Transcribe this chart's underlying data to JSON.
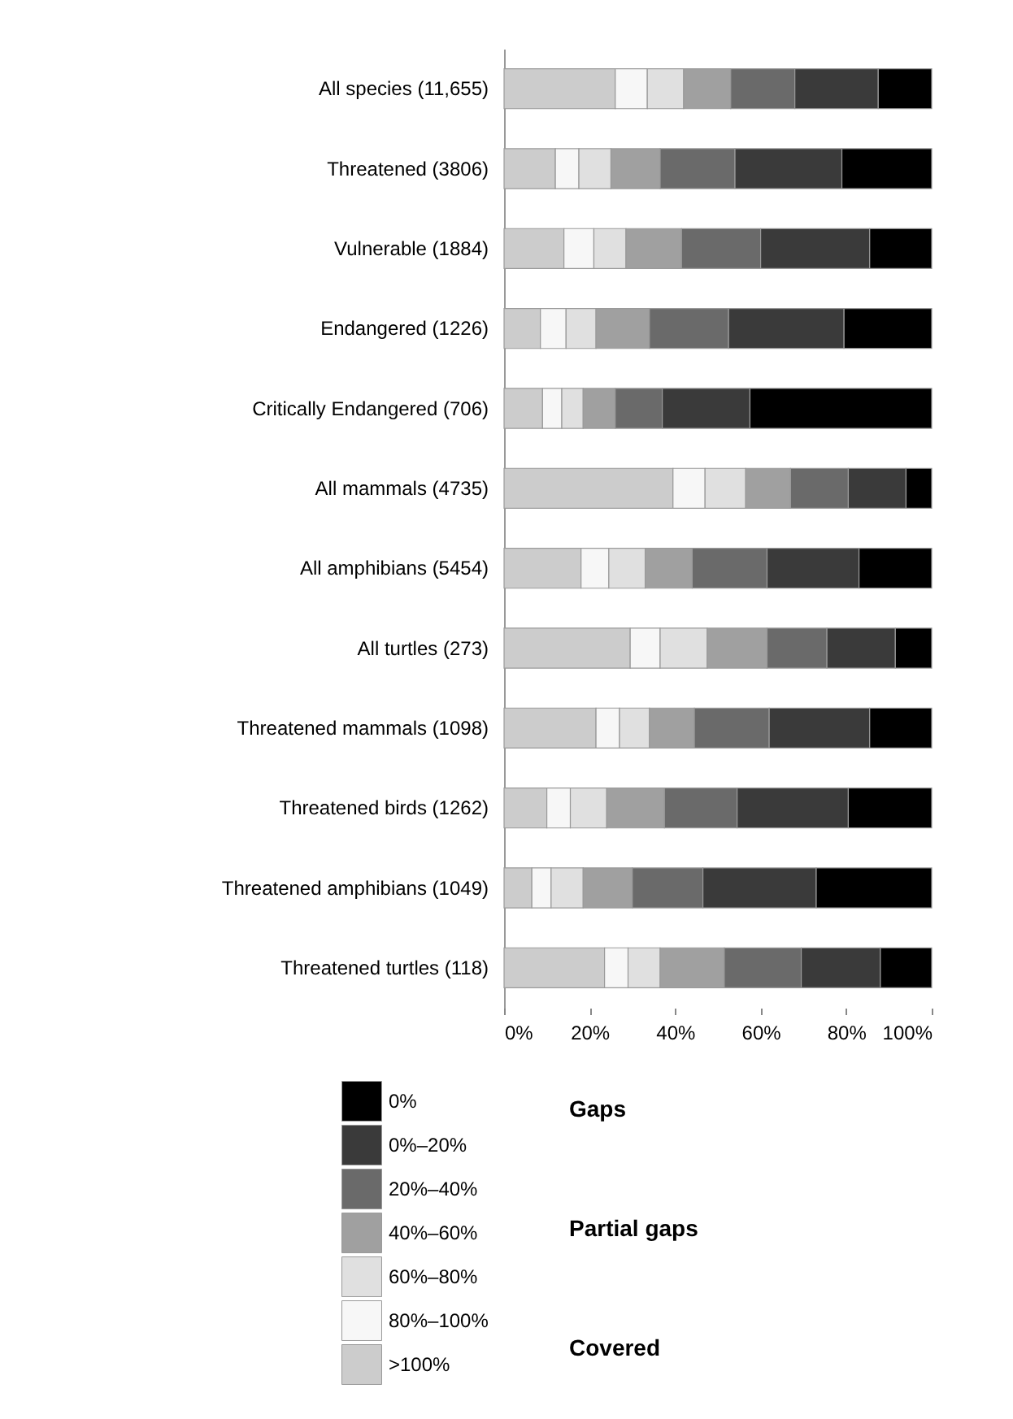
{
  "chart_data": {
    "type": "bar",
    "orientation": "horizontal",
    "stacked": true,
    "categories": [
      "All species (11,655)",
      "Threatened (3806)",
      "Vulnerable (1884)",
      "Endangered (1226)",
      "Critically Endangered (706)",
      "All mammals (4735)",
      "All amphibians (5454)",
      "All turtles (273)",
      "Threatened mammals (1098)",
      "Threatened birds (1262)",
      "Threatened amphibians (1049)",
      "Threatened turtles (118)"
    ],
    "series": [
      {
        "name": ">100%",
        "color": "#cccccc",
        "values": [
          26,
          12,
          14,
          8.5,
          9,
          39.5,
          18,
          29.5,
          21.5,
          10,
          6.5,
          23.5
        ]
      },
      {
        "name": "80%–100%",
        "color": "#f7f7f7",
        "values": [
          7.5,
          5.5,
          7,
          6,
          4.5,
          7.5,
          6.5,
          7,
          5.5,
          5.5,
          4.5,
          5.5
        ]
      },
      {
        "name": "60%–80%",
        "color": "#e0e0e0",
        "values": [
          8.5,
          7.5,
          7.5,
          7,
          5,
          9.5,
          8.5,
          11,
          7,
          8.5,
          7.5,
          7.5
        ]
      },
      {
        "name": "40%–60%",
        "color": "#a0a0a0",
        "values": [
          11,
          11.5,
          13,
          12.5,
          7.5,
          10.5,
          11,
          14,
          10.5,
          13.5,
          11.5,
          15
        ]
      },
      {
        "name": "20%–40%",
        "color": "#6a6a6a",
        "values": [
          15,
          17.5,
          18.5,
          18.5,
          11,
          13.5,
          17.5,
          14,
          17.5,
          17,
          16.5,
          18
        ]
      },
      {
        "name": "0%–20%",
        "color": "#3a3a3a",
        "values": [
          19.5,
          25,
          25.5,
          27,
          20.5,
          13.5,
          21.5,
          16,
          23.5,
          26,
          26.5,
          18.5
        ]
      },
      {
        "name": "0%",
        "color": "#000000",
        "values": [
          12.5,
          21,
          14.5,
          20.5,
          42.5,
          6,
          17,
          8.5,
          14.5,
          19.5,
          27,
          12
        ]
      }
    ],
    "xlim": [
      0,
      100
    ],
    "xticks": [
      {
        "value": 0,
        "label": "0%"
      },
      {
        "value": 20,
        "label": "20%"
      },
      {
        "value": 40,
        "label": "40%"
      },
      {
        "value": 60,
        "label": "60%"
      },
      {
        "value": 80,
        "label": "80%"
      },
      {
        "value": 100,
        "label": "100%"
      }
    ],
    "grid": false,
    "legend": "bottom",
    "annotations": [
      "Gaps",
      "Partial gaps",
      "Covered"
    ]
  }
}
